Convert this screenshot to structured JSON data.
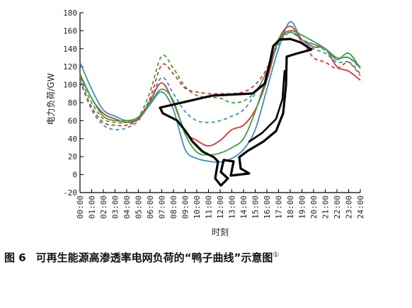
{
  "chart_data": {
    "type": "line",
    "title": "",
    "xlabel": "时刻",
    "ylabel": "电力负荷/GW",
    "ylim": [
      -20,
      180
    ],
    "yticks": [
      -20,
      0,
      20,
      40,
      60,
      80,
      100,
      120,
      140,
      160,
      180
    ],
    "xlim": [
      0,
      24
    ],
    "categories": [
      "00:00",
      "01:00",
      "02:00",
      "03:00",
      "04:00",
      "05:00",
      "06:00",
      "07:00",
      "08:00",
      "09:00",
      "10:00",
      "11:00",
      "12:00",
      "13:00",
      "14:00",
      "15:00",
      "16:00",
      "17:00",
      "18:00",
      "19:00",
      "20:00",
      "21:00",
      "22:00",
      "23:00",
      "24:00"
    ],
    "grid": false,
    "legend": "none",
    "series": [
      {
        "color": "#3a8fc4",
        "dash": "solid",
        "x": [
          0,
          1,
          2,
          3,
          4,
          5,
          6,
          7,
          8,
          9,
          10,
          11,
          12,
          13,
          14,
          15,
          16,
          17,
          18,
          19,
          20,
          21,
          22,
          23,
          24
        ],
        "y": [
          125,
          95,
          72,
          65,
          60,
          62,
          78,
          92,
          72,
          28,
          18,
          15,
          14,
          18,
          28,
          50,
          95,
          140,
          170,
          150,
          145,
          140,
          130,
          130,
          120
        ]
      },
      {
        "color": "#e0322d",
        "dash": "solid",
        "x": [
          0,
          1,
          2,
          3,
          4,
          5,
          6,
          7,
          8,
          9,
          10,
          11,
          12,
          13,
          14,
          15,
          16,
          17,
          18,
          19,
          20,
          21,
          22,
          23,
          24
        ],
        "y": [
          112,
          85,
          68,
          62,
          58,
          62,
          82,
          102,
          80,
          48,
          38,
          32,
          38,
          50,
          55,
          72,
          105,
          150,
          165,
          150,
          142,
          140,
          120,
          115,
          105
        ]
      },
      {
        "color": "#3aa33a",
        "dash": "solid",
        "x": [
          0,
          1,
          2,
          3,
          4,
          5,
          6,
          7,
          8,
          9,
          10,
          11,
          12,
          13,
          14,
          15,
          16,
          17,
          18,
          19,
          20,
          21,
          22,
          23,
          24
        ],
        "y": [
          110,
          85,
          65,
          60,
          60,
          64,
          80,
          95,
          82,
          45,
          25,
          22,
          24,
          30,
          40,
          70,
          110,
          150,
          160,
          155,
          148,
          140,
          128,
          135,
          118
        ]
      },
      {
        "color": "#3aa33a",
        "dash": "dashed",
        "x": [
          0,
          1,
          2,
          3,
          4,
          5,
          6,
          7,
          8,
          9,
          10,
          11,
          12,
          13,
          14,
          15,
          16,
          17,
          18,
          19,
          20,
          21,
          22,
          23,
          24
        ],
        "y": [
          108,
          80,
          62,
          58,
          58,
          64,
          92,
          132,
          118,
          98,
          88,
          86,
          85,
          80,
          82,
          92,
          115,
          148,
          158,
          150,
          145,
          138,
          130,
          130,
          118
        ]
      },
      {
        "color": "#e0322d",
        "dash": "dashed",
        "x": [
          0,
          1,
          2,
          3,
          4,
          5,
          6,
          7,
          8,
          9,
          10,
          11,
          12,
          13,
          14,
          15,
          16,
          17,
          18,
          19,
          20,
          21,
          22,
          23,
          24
        ],
        "y": [
          105,
          75,
          58,
          55,
          55,
          62,
          85,
          122,
          112,
          96,
          92,
          90,
          90,
          90,
          92,
          100,
          118,
          148,
          160,
          148,
          130,
          125,
          118,
          125,
          112
        ]
      },
      {
        "color": "#3a8fc4",
        "dash": "dashed",
        "x": [
          0,
          1,
          2,
          3,
          4,
          5,
          6,
          7,
          8,
          9,
          10,
          11,
          12,
          13,
          14,
          15,
          16,
          17,
          18,
          19,
          20,
          21,
          22,
          23,
          24
        ],
        "y": [
          104,
          72,
          55,
          50,
          52,
          60,
          82,
          108,
          90,
          70,
          60,
          58,
          60,
          65,
          72,
          90,
          115,
          145,
          158,
          150,
          140,
          135,
          125,
          125,
          110
        ]
      }
    ]
  },
  "caption": {
    "fig_no": "图 6",
    "text": "可再生能源高渗透率电网负荷的“鸭子曲线”示意图",
    "note": "①"
  }
}
